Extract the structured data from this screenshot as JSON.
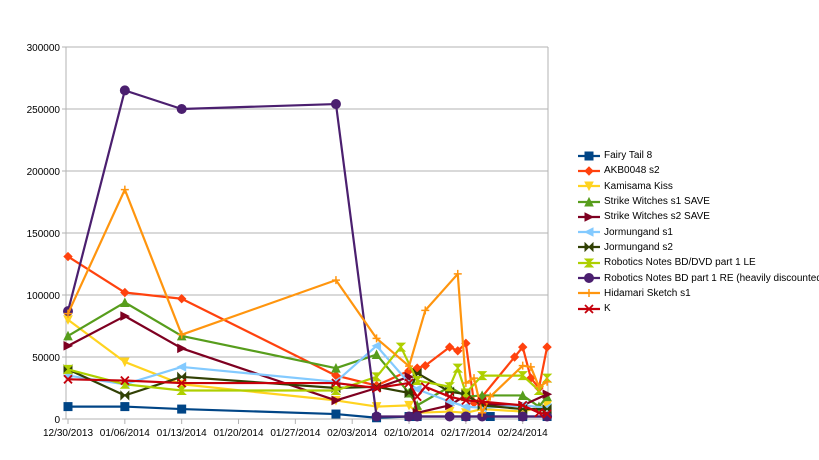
{
  "chart_data": {
    "type": "line",
    "title": "",
    "xlabel": "",
    "ylabel": "",
    "ylim": [
      0,
      300000
    ],
    "yticks": [
      0,
      50000,
      100000,
      150000,
      200000,
      250000,
      300000
    ],
    "xlim": [
      "2013-12-30",
      "2014-02-27"
    ],
    "xticks": [
      "12/30/2013",
      "01/06/2014",
      "01/13/2014",
      "01/20/2014",
      "01/27/2014",
      "02/03/2014",
      "02/10/2014",
      "02/17/2014",
      "02/24/2014"
    ],
    "grid": "horizontal",
    "legend": "right",
    "series": [
      {
        "name": "Fairy Tail 8",
        "color": "#004586",
        "marker": "square",
        "x": [
          "2013-12-30",
          "2014-01-06",
          "2014-01-13",
          "2014-02-01",
          "2014-02-06",
          "2014-02-10",
          "2014-02-11",
          "2014-02-17",
          "2014-02-20",
          "2014-02-24",
          "2014-02-27"
        ],
        "y": [
          10000,
          10000,
          8000,
          4000,
          1000,
          2000,
          2000,
          2000,
          2000,
          2000,
          2000
        ]
      },
      {
        "name": "AKB0048 s2",
        "color": "#ff420e",
        "marker": "diamond",
        "x": [
          "2013-12-30",
          "2014-01-06",
          "2014-01-13",
          "2014-02-01",
          "2014-02-06",
          "2014-02-10",
          "2014-02-11",
          "2014-02-12",
          "2014-02-15",
          "2014-02-16",
          "2014-02-17",
          "2014-02-18",
          "2014-02-19",
          "2014-02-23",
          "2014-02-24",
          "2014-02-25",
          "2014-02-26",
          "2014-02-27"
        ],
        "y": [
          131000,
          102000,
          97000,
          35000,
          27000,
          39000,
          41000,
          43000,
          58000,
          55000,
          61000,
          13000,
          18000,
          50000,
          58000,
          33000,
          25000,
          58000
        ]
      },
      {
        "name": "Kamisama Kiss",
        "color": "#ffd320",
        "marker": "triangle-down",
        "x": [
          "2013-12-30",
          "2014-01-06",
          "2014-01-13",
          "2014-02-01",
          "2014-02-06",
          "2014-02-10",
          "2014-02-11",
          "2014-02-15",
          "2014-02-17",
          "2014-02-19",
          "2014-02-24",
          "2014-02-27"
        ],
        "y": [
          80000,
          46000,
          28000,
          15000,
          10000,
          11000,
          5000,
          6000,
          5000,
          8000,
          6000,
          11000
        ]
      },
      {
        "name": "Strike Witches s1 SAVE",
        "color": "#579d1c",
        "marker": "triangle-up",
        "x": [
          "2013-12-30",
          "2014-01-06",
          "2014-01-13",
          "2014-02-01",
          "2014-02-06",
          "2014-02-10",
          "2014-02-11",
          "2014-02-15",
          "2014-02-17",
          "2014-02-19",
          "2014-02-24",
          "2014-02-26",
          "2014-02-27"
        ],
        "y": [
          67000,
          94000,
          67000,
          41000,
          52000,
          21000,
          11000,
          26000,
          18000,
          19000,
          19000,
          10000,
          18000
        ]
      },
      {
        "name": "Strike Witches s2 SAVE",
        "color": "#7e0021",
        "marker": "triangle-right",
        "x": [
          "2013-12-30",
          "2014-01-06",
          "2014-01-13",
          "2014-02-01",
          "2014-02-06",
          "2014-02-10",
          "2014-02-11",
          "2014-02-15",
          "2014-02-17",
          "2014-02-19",
          "2014-02-24",
          "2014-02-27"
        ],
        "y": [
          59000,
          83000,
          57000,
          15000,
          25000,
          34000,
          5000,
          11000,
          19000,
          12000,
          11000,
          20000
        ]
      },
      {
        "name": "Jormungand s1",
        "color": "#83caff",
        "marker": "triangle-left",
        "x": [
          "2013-12-30",
          "2014-01-06",
          "2014-01-13",
          "2014-02-01",
          "2014-02-06",
          "2014-02-10",
          "2014-02-11",
          "2014-02-15",
          "2014-02-17",
          "2014-02-19",
          "2014-02-24",
          "2014-02-27"
        ],
        "y": [
          35000,
          28000,
          42000,
          30000,
          59000,
          29000,
          24000,
          14000,
          10000,
          9000,
          11000,
          9000
        ]
      },
      {
        "name": "Jormungand s2",
        "color": "#314004",
        "marker": "bowtie",
        "x": [
          "2013-12-30",
          "2014-01-06",
          "2014-01-13",
          "2014-02-01",
          "2014-02-06",
          "2014-02-10",
          "2014-02-11",
          "2014-02-15",
          "2014-02-17",
          "2014-02-19",
          "2014-02-24",
          "2014-02-27"
        ],
        "y": [
          40000,
          19000,
          34000,
          25000,
          26000,
          21000,
          37000,
          22000,
          20000,
          11000,
          8000,
          8000
        ]
      },
      {
        "name": "Robotics Notes BD/DVD part 1 LE",
        "color": "#aecf00",
        "marker": "hourglass",
        "x": [
          "2013-12-30",
          "2014-01-06",
          "2014-01-13",
          "2014-02-01",
          "2014-02-06",
          "2014-02-09",
          "2014-02-11",
          "2014-02-15",
          "2014-02-16",
          "2014-02-17",
          "2014-02-19",
          "2014-02-24",
          "2014-02-26",
          "2014-02-27"
        ],
        "y": [
          40000,
          28000,
          23000,
          23000,
          34000,
          58000,
          31000,
          26000,
          41000,
          21000,
          35000,
          35000,
          23000,
          33000
        ]
      },
      {
        "name": "Robotics Notes BD part 1 RE (heavily discounted)",
        "color": "#4b1f6f",
        "marker": "circle",
        "x": [
          "2013-12-30",
          "2014-01-06",
          "2014-01-13",
          "2014-02-01",
          "2014-02-06",
          "2014-02-10",
          "2014-02-11",
          "2014-02-15",
          "2014-02-17",
          "2014-02-19",
          "2014-02-24",
          "2014-02-27"
        ],
        "y": [
          87000,
          265000,
          250000,
          254000,
          2000,
          2000,
          2000,
          2000,
          2000,
          2000,
          2000,
          2000
        ]
      },
      {
        "name": "Hidamari Sketch s1",
        "color": "#ff950e",
        "marker": "plus",
        "x": [
          "2013-12-30",
          "2014-01-06",
          "2014-01-13",
          "2014-02-01",
          "2014-02-06",
          "2014-02-10",
          "2014-02-12",
          "2014-02-16",
          "2014-02-17",
          "2014-02-18",
          "2014-02-19",
          "2014-02-20",
          "2014-02-24",
          "2014-02-25",
          "2014-02-26",
          "2014-02-27"
        ],
        "y": [
          85000,
          185000,
          68000,
          112000,
          65000,
          42600,
          87600,
          117000,
          29000,
          33000,
          5000,
          18000,
          43000,
          42000,
          26000,
          30000
        ]
      },
      {
        "name": "K",
        "color": "#c5000b",
        "marker": "x",
        "x": [
          "2013-12-30",
          "2014-01-06",
          "2014-01-13",
          "2014-02-01",
          "2014-02-06",
          "2014-02-10",
          "2014-02-11",
          "2014-02-12",
          "2014-02-15",
          "2014-02-17",
          "2014-02-19",
          "2014-02-24",
          "2014-02-26",
          "2014-02-27"
        ],
        "y": [
          32000,
          31000,
          29000,
          29000,
          25000,
          29000,
          18000,
          26000,
          18000,
          15000,
          14000,
          11000,
          5000,
          4000
        ]
      }
    ]
  }
}
